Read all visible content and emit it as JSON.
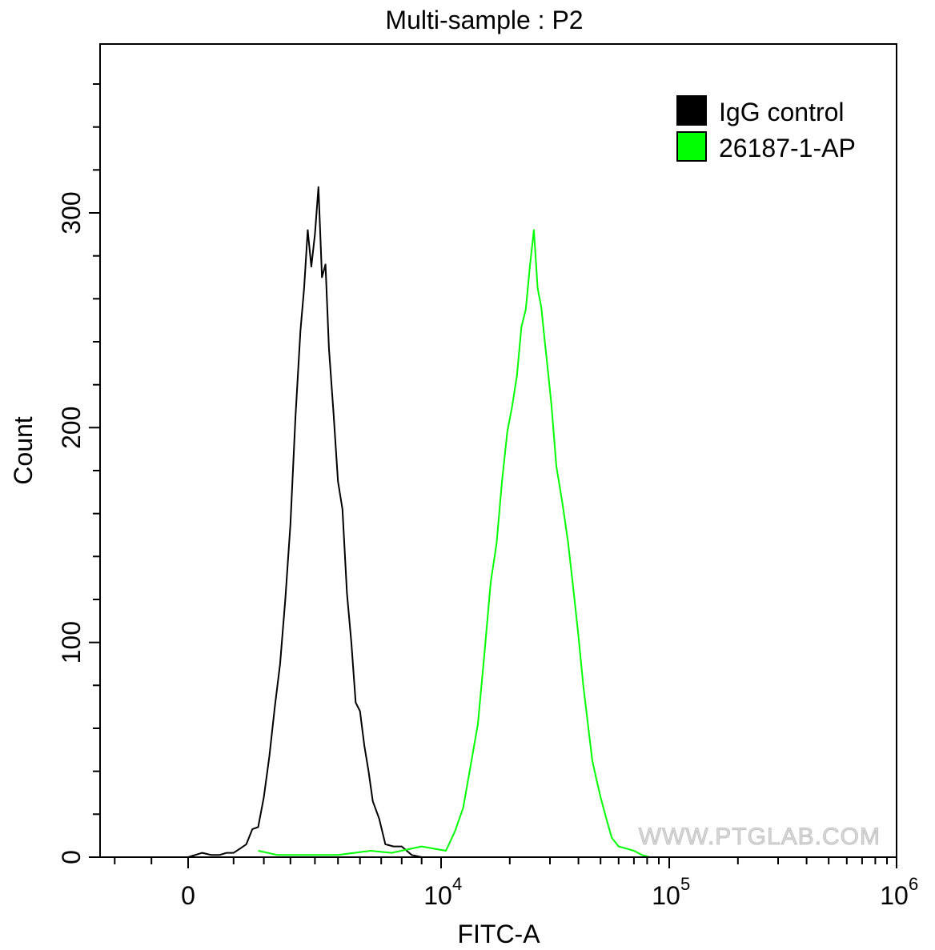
{
  "chart_data": {
    "type": "area",
    "title": "Multi-sample : P2",
    "xlabel": "FITC-A",
    "ylabel": "Count",
    "x_scale": "biexponential",
    "xlim": [
      -1200,
      1000000
    ],
    "ylim": [
      0,
      375
    ],
    "x_ticks": [
      {
        "value": 0,
        "label": "0"
      },
      {
        "value": 10000,
        "base": "10",
        "exp": "4"
      },
      {
        "value": 100000,
        "base": "10",
        "exp": "5"
      },
      {
        "value": 1000000,
        "base": "10",
        "exp": "6"
      }
    ],
    "y_ticks": [
      0,
      100,
      200,
      300
    ],
    "legend_position": "top-right",
    "watermark": "WWW.PTGLAB.COM",
    "grid": false,
    "series": [
      {
        "name": "IgG control",
        "color": "#000000",
        "points": [
          [
            0,
            0
          ],
          [
            200,
            2
          ],
          [
            400,
            1
          ],
          [
            600,
            1
          ],
          [
            800,
            2
          ],
          [
            1000,
            2
          ],
          [
            1200,
            4
          ],
          [
            1400,
            6
          ],
          [
            1600,
            13
          ],
          [
            1800,
            14
          ],
          [
            2000,
            28
          ],
          [
            2200,
            47
          ],
          [
            2400,
            70
          ],
          [
            2600,
            90
          ],
          [
            2800,
            120
          ],
          [
            3000,
            155
          ],
          [
            3200,
            205
          ],
          [
            3400,
            245
          ],
          [
            3550,
            265
          ],
          [
            3700,
            292
          ],
          [
            3850,
            275
          ],
          [
            4000,
            290
          ],
          [
            4150,
            312
          ],
          [
            4300,
            270
          ],
          [
            4450,
            276
          ],
          [
            4600,
            237
          ],
          [
            4800,
            207
          ],
          [
            5000,
            175
          ],
          [
            5200,
            162
          ],
          [
            5400,
            123
          ],
          [
            5600,
            100
          ],
          [
            5800,
            72
          ],
          [
            6000,
            68
          ],
          [
            6200,
            52
          ],
          [
            6400,
            40
          ],
          [
            6600,
            26
          ],
          [
            6900,
            18
          ],
          [
            7200,
            6
          ],
          [
            7600,
            5
          ],
          [
            8000,
            5
          ],
          [
            8500,
            1
          ],
          [
            9000,
            0
          ]
        ]
      },
      {
        "name": "26187-1-AP",
        "color": "#00ff00",
        "points": [
          [
            1800,
            3
          ],
          [
            2500,
            1
          ],
          [
            3500,
            1
          ],
          [
            5000,
            1
          ],
          [
            6500,
            3
          ],
          [
            7500,
            2
          ],
          [
            9000,
            5
          ],
          [
            10500,
            3
          ],
          [
            11500,
            12
          ],
          [
            12500,
            23
          ],
          [
            13500,
            43
          ],
          [
            14500,
            62
          ],
          [
            15500,
            95
          ],
          [
            16500,
            128
          ],
          [
            17500,
            146
          ],
          [
            18500,
            175
          ],
          [
            19500,
            198
          ],
          [
            20500,
            210
          ],
          [
            21500,
            224
          ],
          [
            22500,
            247
          ],
          [
            23500,
            255
          ],
          [
            24500,
            275
          ],
          [
            25500,
            292
          ],
          [
            26500,
            265
          ],
          [
            27500,
            256
          ],
          [
            28500,
            240
          ],
          [
            29500,
            225
          ],
          [
            30500,
            210
          ],
          [
            32000,
            182
          ],
          [
            34000,
            165
          ],
          [
            36000,
            147
          ],
          [
            38000,
            125
          ],
          [
            40000,
            103
          ],
          [
            42000,
            80
          ],
          [
            44000,
            62
          ],
          [
            46000,
            45
          ],
          [
            48000,
            36
          ],
          [
            50000,
            28
          ],
          [
            53000,
            18
          ],
          [
            56000,
            9
          ],
          [
            60000,
            5
          ],
          [
            65000,
            4
          ],
          [
            70000,
            3
          ],
          [
            76000,
            1
          ],
          [
            82000,
            0
          ]
        ]
      }
    ]
  }
}
